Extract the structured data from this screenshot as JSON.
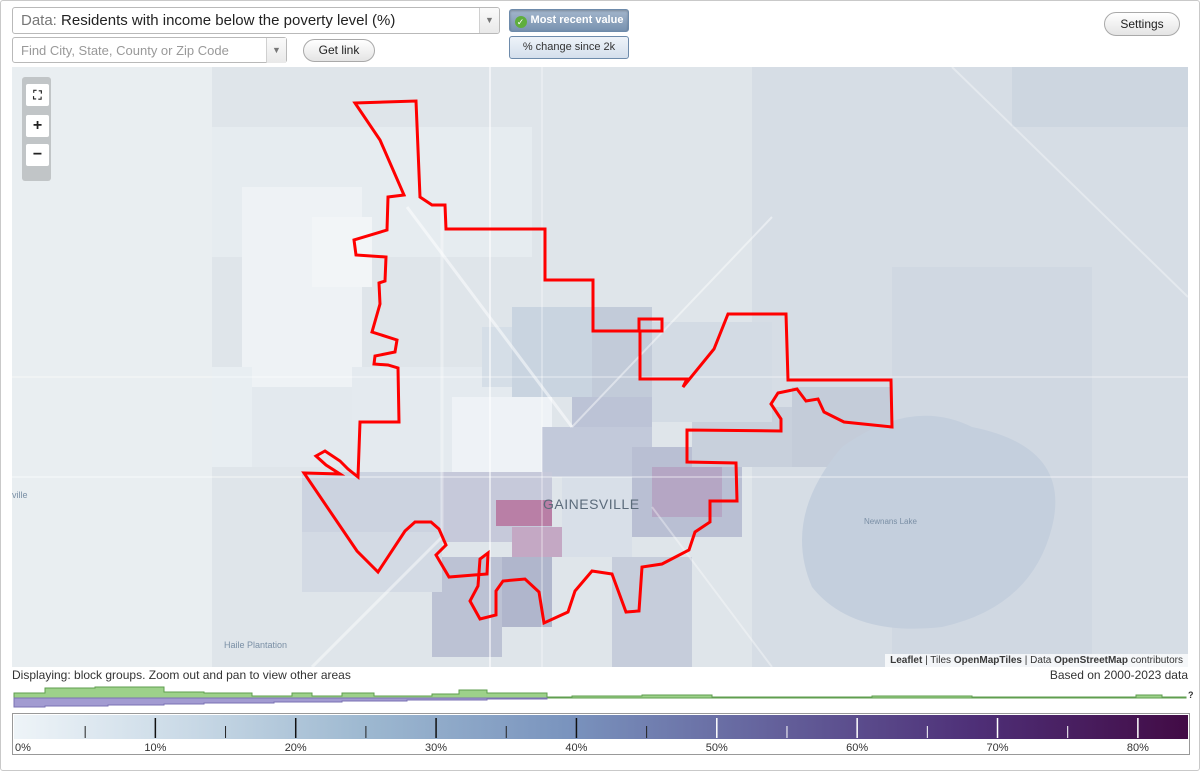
{
  "data_selector": {
    "prefix": "Data:",
    "value": "Residents with income below the poverty level (%)"
  },
  "search": {
    "placeholder": "Find City, State, County or Zip Code"
  },
  "buttons": {
    "get_link": "Get link",
    "settings": "Settings"
  },
  "view_toggle": {
    "active": "Most recent value",
    "inactive": "% change since 2k"
  },
  "map": {
    "city_label": "GAINESVILLE",
    "place_labels": {
      "left_edge": "ville",
      "halle": "Haile Plantation",
      "lake": "Newnans Lake"
    },
    "attribution": {
      "leaflet": "Leaflet",
      "sep1": " | Tiles ",
      "tiles": "OpenMapTiles",
      "sep2": " | Data ",
      "osm": "OpenStreetMap",
      "suffix": " contributors"
    }
  },
  "zoom": {
    "fullscreen": "⛶",
    "in": "+",
    "out": "−"
  },
  "footer": {
    "displaying": "Displaying: block groups. Zoom out and pan to view other areas",
    "based_on": "Based on 2000-2023 data",
    "hist_marker": "?"
  },
  "legend": {
    "ticks": [
      "0%",
      "10%",
      "20%",
      "30%",
      "40%",
      "50%",
      "60%",
      "70%",
      "80%"
    ],
    "values": [
      0,
      10,
      20,
      30,
      40,
      50,
      60,
      70,
      80
    ],
    "max": 83.5
  },
  "colors": {
    "boundary": "#ff0000",
    "hist_green": "#9dd18a",
    "hist_purple": "#a29bd1"
  }
}
